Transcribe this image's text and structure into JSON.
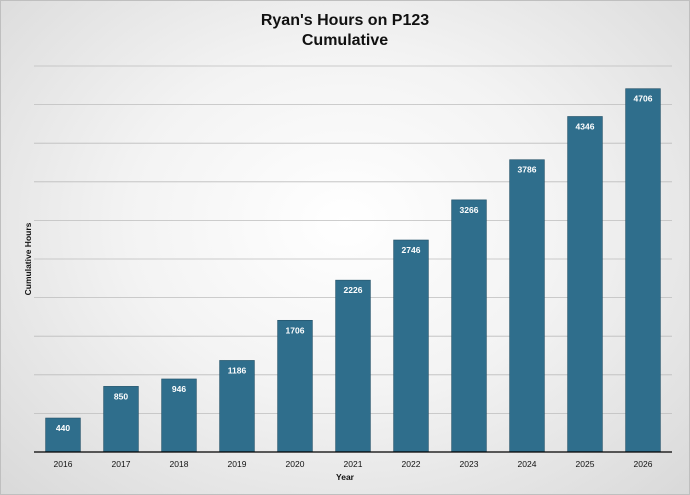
{
  "chart_data": {
    "type": "bar",
    "title": [
      "Ryan's Hours on P123",
      "Cumulative"
    ],
    "xlabel": "Year",
    "ylabel": "Cumulative Hours",
    "categories": [
      "2016",
      "2017",
      "2018",
      "2019",
      "2020",
      "2021",
      "2022",
      "2023",
      "2024",
      "2025",
      "2026"
    ],
    "values": [
      440,
      850,
      946,
      1186,
      1706,
      2226,
      2746,
      3266,
      3786,
      4346,
      4706
    ],
    "ylim": [
      0,
      5000
    ],
    "ytick_step": 500,
    "grid": true,
    "legend": "none",
    "bar_color": "#2f6e8c"
  }
}
